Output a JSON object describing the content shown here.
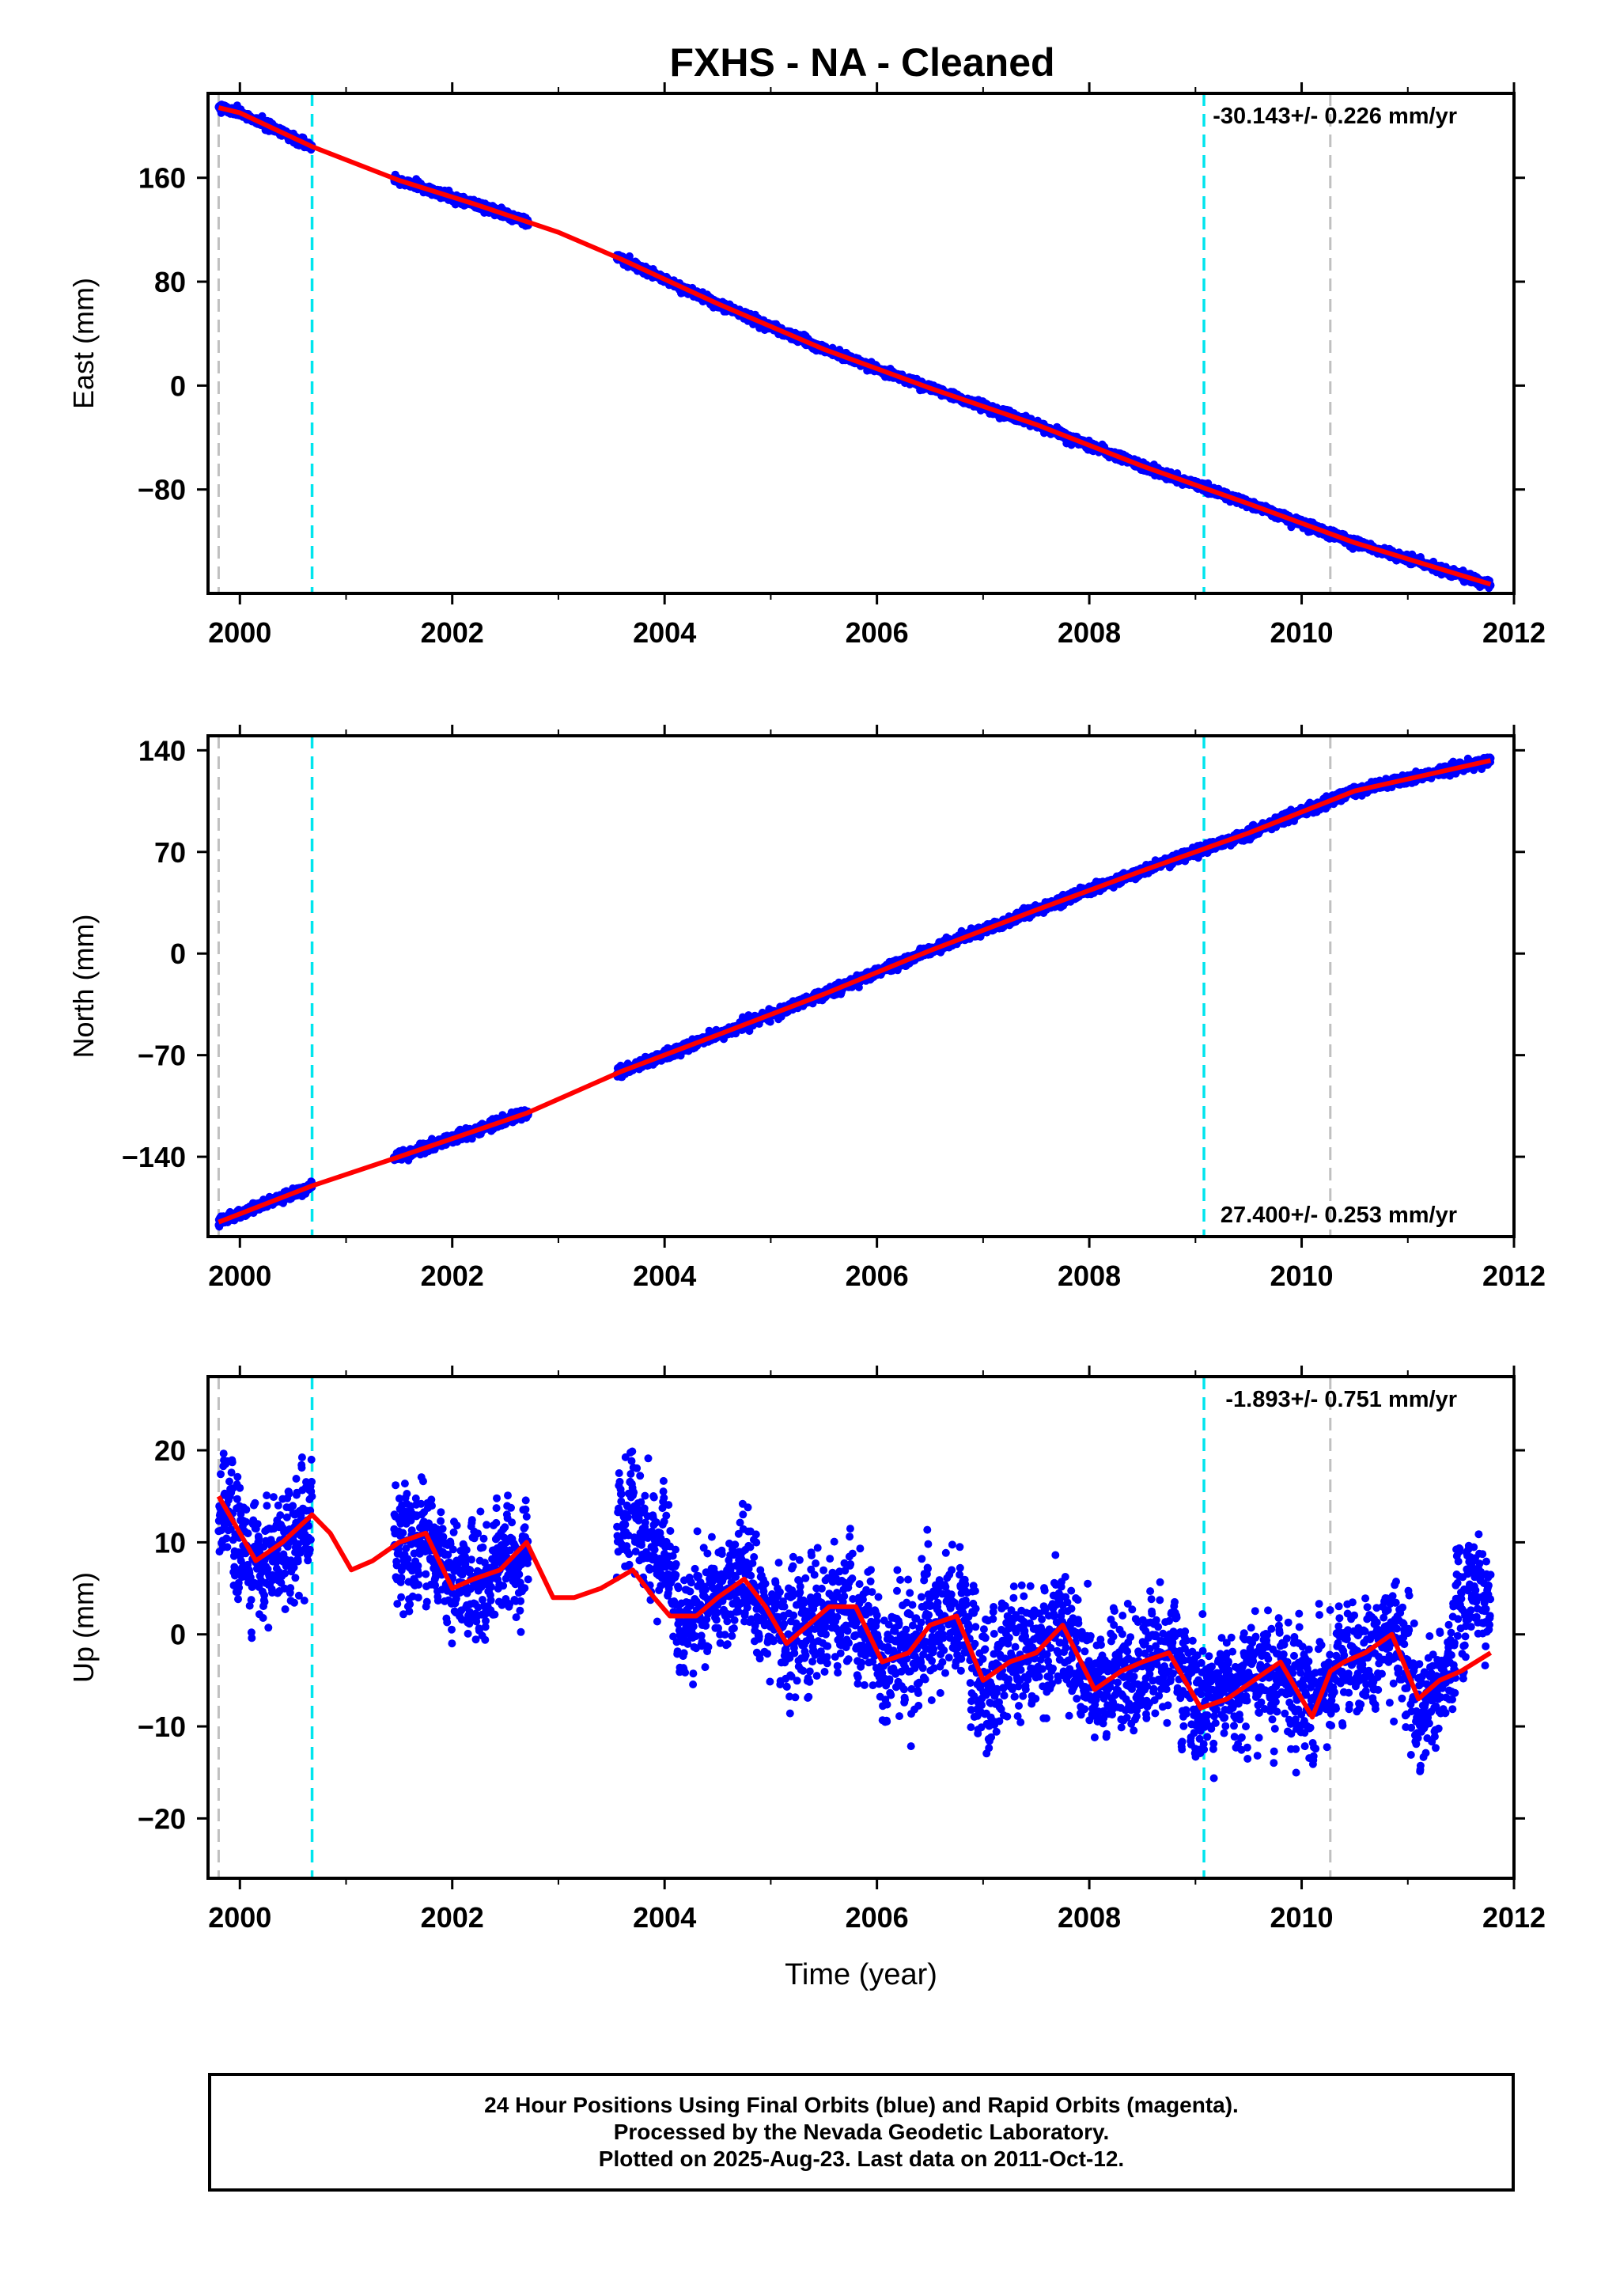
{
  "figure": {
    "title": "FXHS  - NA - Cleaned",
    "footer": {
      "line1": "24 Hour Positions Using Final Orbits (blue) and Rapid Orbits (magenta).",
      "line2": "Processed by the Nevada Geodetic Laboratory.",
      "line3": "Plotted on 2025-Aug-23. Last data on 2011-Oct-12."
    },
    "colors": {
      "data_points": "#0000ff",
      "model_line": "#ff0000",
      "equipment_change_lines": "#00e5ee",
      "other_event_lines": "#c0c0c0"
    }
  },
  "chart_data": [
    {
      "type": "scatter",
      "panel": "east",
      "ylabel": "East (mm)",
      "xlabel": "",
      "rate_label": "-30.143+/- 0.226 mm/yr",
      "xlim": [
        1999.7,
        2012.0
      ],
      "ylim": [
        -160,
        225
      ],
      "xticks": [
        2000,
        2002,
        2004,
        2006,
        2008,
        2010,
        2012
      ],
      "yticks": [
        -80,
        0,
        80,
        160
      ],
      "grey_event_lines": [
        1999.8,
        2010.27
      ],
      "cyan_event_lines": [
        2000.68,
        2009.08
      ],
      "data_segments": [
        [
          1999.8,
          2000.68
        ],
        [
          2001.45,
          2002.72
        ],
        [
          2003.55,
          2011.78
        ]
      ],
      "trend": {
        "x0": 2005.5,
        "y0": 24.6,
        "rate": -30.143
      },
      "noise_std": 1.6,
      "series": [
        {
          "name": "daily positions",
          "style": "points",
          "color": "#0000ff"
        },
        {
          "name": "model fit",
          "style": "line",
          "color": "#ff0000",
          "x": [
            1999.8,
            2000.0,
            2000.68,
            2001.5,
            2002.2,
            2003.0,
            2003.6,
            2004.5,
            2005.5,
            2006.5,
            2007.5,
            2008.5,
            2009.5,
            2010.5,
            2011.78
          ],
          "y": [
            214,
            210,
            184,
            158,
            140,
            118,
            97,
            63,
            28,
            -2,
            -30,
            -62,
            -91,
            -121,
            -153
          ]
        }
      ]
    },
    {
      "type": "scatter",
      "panel": "north",
      "ylabel": "North (mm)",
      "xlabel": "",
      "rate_label": "27.400+/- 0.253 mm/yr",
      "xlim": [
        1999.7,
        2012.0
      ],
      "ylim": [
        -195,
        150
      ],
      "xticks": [
        2000,
        2002,
        2004,
        2006,
        2008,
        2010,
        2012
      ],
      "yticks": [
        -140,
        -70,
        0,
        70,
        140
      ],
      "grey_event_lines": [
        1999.8,
        2010.27
      ],
      "cyan_event_lines": [
        2000.68,
        2009.08
      ],
      "data_segments": [
        [
          1999.8,
          2000.68
        ],
        [
          2001.45,
          2002.72
        ],
        [
          2003.55,
          2011.78
        ]
      ],
      "trend": {
        "x0": 2006.4,
        "y0": 0.0,
        "rate": 27.4
      },
      "noise_std": 1.6,
      "series": [
        {
          "name": "daily positions",
          "style": "points",
          "color": "#0000ff"
        },
        {
          "name": "model fit",
          "style": "line",
          "color": "#ff0000",
          "x": [
            1999.8,
            2000.68,
            2001.5,
            2002.7,
            2003.6,
            2004.5,
            2005.5,
            2006.5,
            2007.5,
            2008.5,
            2009.5,
            2010.5,
            2011.78
          ],
          "y": [
            -185,
            -160,
            -140,
            -110,
            -81,
            -56,
            -28,
            2,
            30,
            57,
            83,
            112,
            133
          ]
        }
      ]
    },
    {
      "type": "scatter",
      "panel": "up",
      "ylabel": "Up (mm)",
      "xlabel": "Time (year)",
      "rate_label": "-1.893+/- 0.751 mm/yr",
      "xlim": [
        1999.7,
        2012.0
      ],
      "ylim": [
        -26.5,
        28
      ],
      "xticks": [
        2000,
        2002,
        2004,
        2006,
        2008,
        2010,
        2012
      ],
      "yticks": [
        -20,
        -10,
        0,
        10,
        20
      ],
      "grey_event_lines": [
        1999.8,
        2010.27
      ],
      "cyan_event_lines": [
        2000.68,
        2009.08
      ],
      "data_segments": [
        [
          1999.8,
          2000.68
        ],
        [
          2001.45,
          2002.72
        ],
        [
          2003.55,
          2011.78
        ]
      ],
      "noise_std": 4.5,
      "series": [
        {
          "name": "daily positions",
          "style": "points",
          "color": "#0000ff"
        },
        {
          "name": "model fit",
          "style": "line",
          "color": "#ff0000",
          "x": [
            1999.8,
            1999.95,
            2000.15,
            2000.4,
            2000.68,
            2000.85,
            2001.05,
            2001.25,
            2001.5,
            2001.75,
            2002.0,
            2002.2,
            2002.45,
            2002.7,
            2002.95,
            2003.15,
            2003.4,
            2003.7,
            2003.9,
            2004.05,
            2004.3,
            2004.5,
            2004.75,
            2004.95,
            2005.15,
            2005.35,
            2005.55,
            2005.8,
            2006.05,
            2006.3,
            2006.5,
            2006.75,
            2007.0,
            2007.25,
            2007.5,
            2007.75,
            2008.05,
            2008.3,
            2008.5,
            2008.75,
            2009.05,
            2009.3,
            2009.55,
            2009.8,
            2010.1,
            2010.27,
            2010.4,
            2010.6,
            2010.85,
            2011.1,
            2011.3,
            2011.5,
            2011.78
          ],
          "y": [
            15,
            12,
            8,
            10,
            13,
            11,
            7,
            8,
            10,
            11,
            5,
            6,
            7,
            10,
            4,
            4,
            5,
            7,
            4,
            2,
            2,
            4,
            6,
            3,
            -1,
            1,
            3,
            3,
            -3,
            -2,
            1,
            2,
            -5,
            -3,
            -2,
            1,
            -6,
            -4,
            -3,
            -2,
            -8,
            -7,
            -5,
            -3,
            -9,
            -4,
            -3,
            -2,
            0,
            -7,
            -5,
            -4,
            -2
          ]
        }
      ]
    }
  ]
}
